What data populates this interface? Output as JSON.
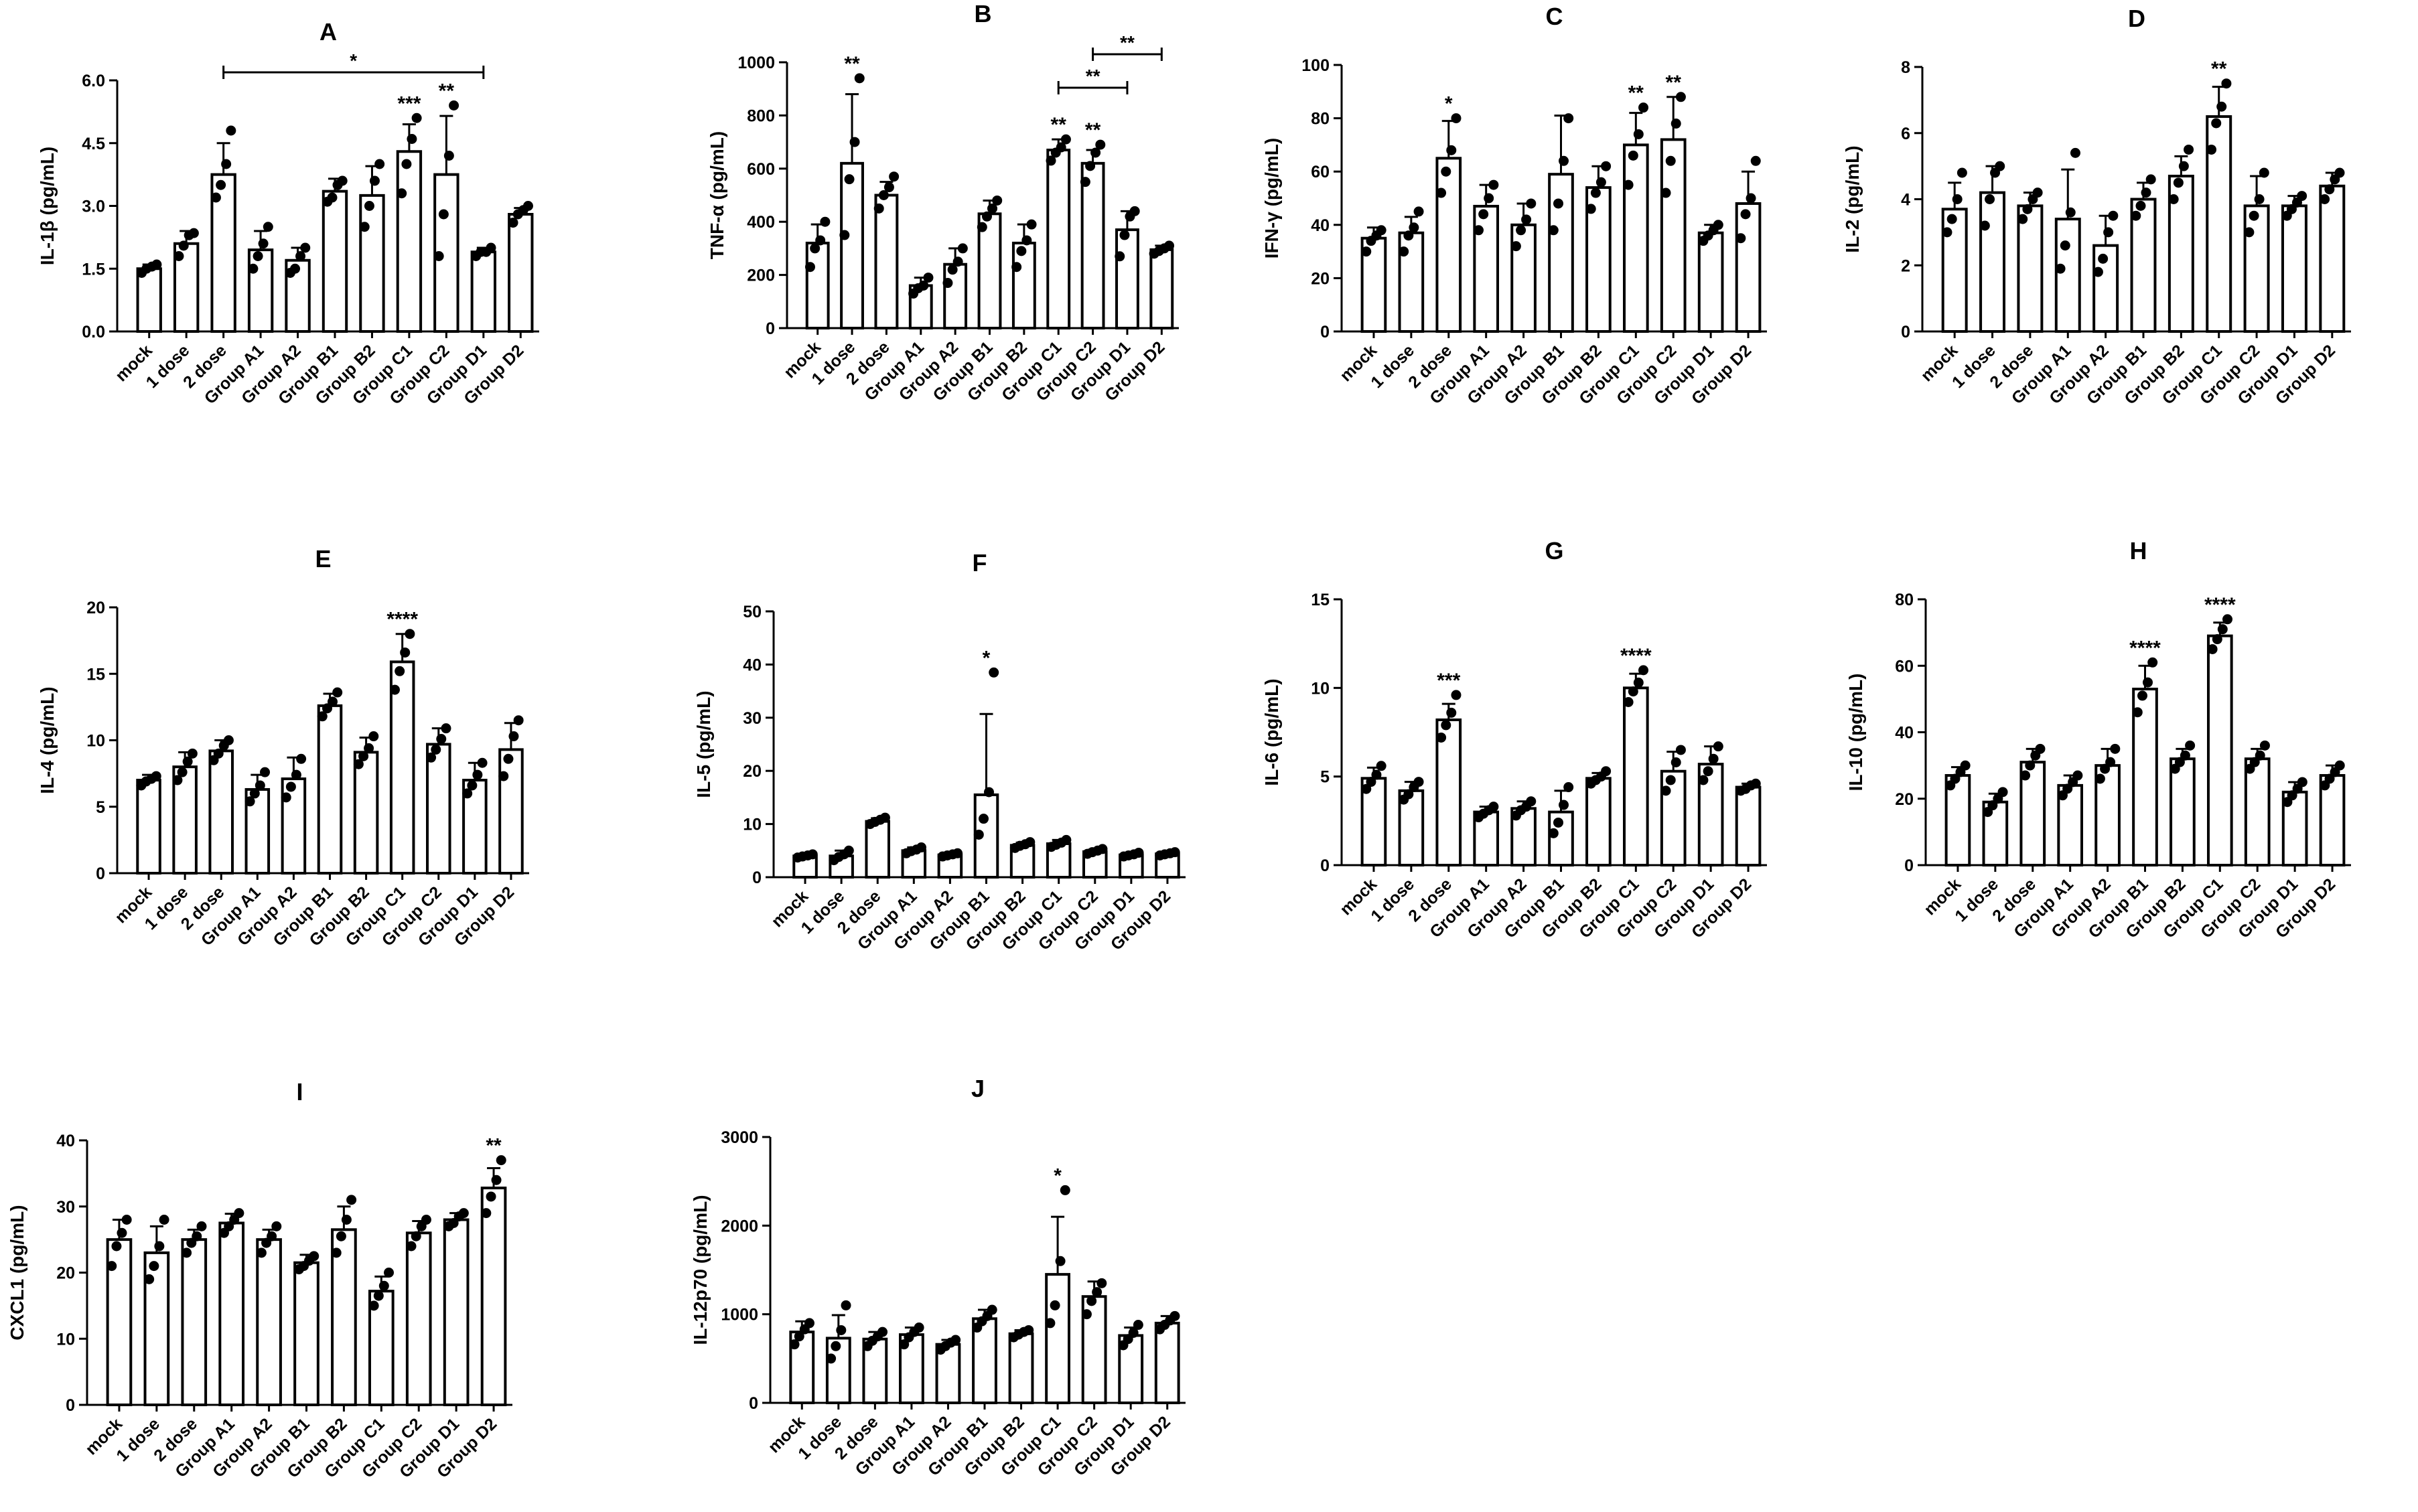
{
  "figure": {
    "categories": [
      "mock",
      "1 dose",
      "2 dose",
      "Group A1",
      "Group A2",
      "Group B1",
      "Group B2",
      "Group C1",
      "Group C2",
      "Group D1",
      "Group D2"
    ],
    "bar_fill": "#ffffff",
    "bar_stroke": "#000000",
    "point_color": "#000000"
  },
  "chart_data": [
    {
      "type": "bar",
      "letter": "A",
      "ylabel": "IL-1β (pg/mL)",
      "ylim": [
        0,
        6
      ],
      "ticks": [
        "0.0",
        "1.5",
        "3.0",
        "4.5",
        "6.0"
      ],
      "tick_values": [
        0,
        1.5,
        3,
        4.5,
        6
      ],
      "values": [
        1.5,
        2.1,
        3.75,
        1.95,
        1.7,
        3.35,
        3.25,
        4.3,
        3.75,
        1.9,
        2.8
      ],
      "errors": [
        0.1,
        0.3,
        0.75,
        0.45,
        0.3,
        0.3,
        0.7,
        0.65,
        1.4,
        0.1,
        0.15
      ],
      "points": [
        [
          1.4,
          1.5,
          1.55,
          1.6
        ],
        [
          1.8,
          2.05,
          2.3,
          2.35
        ],
        [
          3.2,
          3.5,
          4.0,
          4.8
        ],
        [
          1.5,
          1.8,
          2.1,
          2.5
        ],
        [
          1.4,
          1.5,
          1.8,
          2.0
        ],
        [
          3.1,
          3.2,
          3.5,
          3.6
        ],
        [
          2.5,
          3.0,
          3.6,
          4.0
        ],
        [
          3.3,
          4.0,
          4.6,
          5.1
        ],
        [
          1.8,
          2.8,
          4.2,
          5.4
        ],
        [
          1.8,
          1.9,
          1.9,
          2.0
        ],
        [
          2.6,
          2.8,
          2.9,
          3.0
        ]
      ],
      "sig": [
        "",
        "",
        "",
        "",
        "",
        "",
        "",
        "***",
        "**",
        "",
        ""
      ],
      "brackets": [
        {
          "from": 2,
          "to": 9,
          "label": "*"
        }
      ]
    },
    {
      "type": "bar",
      "letter": "B",
      "ylabel": "TNF-α (pg/mL)",
      "ylim": [
        0,
        1000
      ],
      "ticks": [
        "0",
        "200",
        "400",
        "600",
        "800",
        "1000"
      ],
      "tick_values": [
        0,
        200,
        400,
        600,
        800,
        1000
      ],
      "values": [
        320,
        620,
        500,
        160,
        240,
        430,
        320,
        670,
        620,
        370,
        295
      ],
      "errors": [
        70,
        260,
        50,
        30,
        60,
        50,
        70,
        40,
        50,
        70,
        15
      ],
      "points": [
        [
          230,
          300,
          330,
          400
        ],
        [
          350,
          560,
          700,
          940
        ],
        [
          450,
          500,
          530,
          570
        ],
        [
          130,
          150,
          160,
          190
        ],
        [
          170,
          220,
          250,
          300
        ],
        [
          380,
          420,
          450,
          480
        ],
        [
          230,
          290,
          330,
          390
        ],
        [
          630,
          660,
          680,
          710
        ],
        [
          550,
          610,
          660,
          690
        ],
        [
          270,
          350,
          420,
          440
        ],
        [
          280,
          290,
          300,
          310
        ]
      ],
      "sig": [
        "",
        "**",
        "",
        "",
        "",
        "",
        "",
        "**",
        "**",
        "",
        ""
      ],
      "brackets": [
        {
          "from": 8,
          "to": 10,
          "label": "**"
        },
        {
          "from": 7,
          "to": 9,
          "label": "**"
        }
      ]
    },
    {
      "type": "bar",
      "letter": "C",
      "ylabel": "IFN-γ (pg/mL)",
      "ylim": [
        0,
        100
      ],
      "ticks": [
        "0",
        "20",
        "40",
        "60",
        "80",
        "100"
      ],
      "tick_values": [
        0,
        20,
        40,
        60,
        80,
        100
      ],
      "values": [
        35,
        37,
        65,
        47,
        40,
        59,
        54,
        70,
        72,
        37,
        48
      ],
      "errors": [
        4,
        6,
        14,
        8,
        8,
        22,
        8,
        12,
        16,
        3,
        12
      ],
      "points": [
        [
          30,
          34,
          36,
          38
        ],
        [
          30,
          36,
          39,
          45
        ],
        [
          52,
          60,
          68,
          80
        ],
        [
          38,
          44,
          50,
          55
        ],
        [
          32,
          38,
          42,
          48
        ],
        [
          38,
          48,
          64,
          80
        ],
        [
          46,
          52,
          56,
          62
        ],
        [
          55,
          66,
          74,
          84
        ],
        [
          52,
          64,
          78,
          88
        ],
        [
          34,
          36,
          38,
          40
        ],
        [
          35,
          44,
          50,
          64
        ]
      ],
      "sig": [
        "",
        "",
        "*",
        "",
        "",
        "",
        "",
        "**",
        "**",
        "",
        ""
      ],
      "brackets": []
    },
    {
      "type": "bar",
      "letter": "D",
      "ylabel": "IL-2 (pg/mL)",
      "ylim": [
        0,
        8
      ],
      "ticks": [
        "0",
        "2",
        "4",
        "6",
        "8"
      ],
      "tick_values": [
        0,
        2,
        4,
        6,
        8
      ],
      "values": [
        3.7,
        4.2,
        3.8,
        3.4,
        2.6,
        4.0,
        4.7,
        6.5,
        3.8,
        3.8,
        4.4
      ],
      "errors": [
        0.8,
        0.8,
        0.4,
        1.5,
        0.9,
        0.5,
        0.6,
        0.9,
        0.9,
        0.3,
        0.4
      ],
      "points": [
        [
          3.0,
          3.4,
          4.0,
          4.8
        ],
        [
          3.2,
          4.0,
          4.8,
          5.0
        ],
        [
          3.4,
          3.7,
          4.0,
          4.2
        ],
        [
          1.9,
          2.6,
          3.6,
          5.4
        ],
        [
          1.8,
          2.2,
          3.0,
          3.5
        ],
        [
          3.5,
          3.8,
          4.2,
          4.6
        ],
        [
          4.0,
          4.5,
          5.0,
          5.5
        ],
        [
          5.5,
          6.3,
          6.8,
          7.5
        ],
        [
          3.0,
          3.5,
          4.0,
          4.8
        ],
        [
          3.5,
          3.7,
          3.9,
          4.1
        ],
        [
          4.0,
          4.3,
          4.6,
          4.8
        ]
      ],
      "sig": [
        "",
        "",
        "",
        "",
        "",
        "",
        "",
        "**",
        "",
        "",
        ""
      ],
      "brackets": []
    },
    {
      "type": "bar",
      "letter": "E",
      "ylabel": "IL-4 (pg/mL)",
      "ylim": [
        0,
        20
      ],
      "ticks": [
        "0",
        "5",
        "10",
        "15",
        "20"
      ],
      "tick_values": [
        0,
        5,
        10,
        15,
        20
      ],
      "values": [
        7,
        8,
        9.2,
        6.3,
        7.1,
        12.6,
        9.1,
        15.9,
        9.7,
        7,
        9.3
      ],
      "errors": [
        0.4,
        1.1,
        0.8,
        1.1,
        1.6,
        0.9,
        1.1,
        2.1,
        1.2,
        1.3,
        2.0
      ],
      "points": [
        [
          6.6,
          6.9,
          7.1,
          7.3
        ],
        [
          7.0,
          7.6,
          8.4,
          9.0
        ],
        [
          8.5,
          9.0,
          9.6,
          10.0
        ],
        [
          5.4,
          6.0,
          6.6,
          7.6
        ],
        [
          5.7,
          6.5,
          7.4,
          8.6
        ],
        [
          11.8,
          12.4,
          12.9,
          13.6
        ],
        [
          8.2,
          8.8,
          9.4,
          10.3
        ],
        [
          13.8,
          15.2,
          16.6,
          18.0
        ],
        [
          8.7,
          9.3,
          10.1,
          10.9
        ],
        [
          6.0,
          6.6,
          7.4,
          8.3
        ],
        [
          7.3,
          8.6,
          10.3,
          11.5
        ]
      ],
      "sig": [
        "",
        "",
        "",
        "",
        "",
        "",
        "",
        "****",
        "",
        "",
        ""
      ],
      "brackets": []
    },
    {
      "type": "bar",
      "letter": "F",
      "ylabel": "IL-5 (pg/mL)",
      "ylim": [
        0,
        50
      ],
      "ticks": [
        "0",
        "10",
        "20",
        "30",
        "40",
        "50"
      ],
      "tick_values": [
        0,
        10,
        20,
        30,
        40,
        50
      ],
      "values": [
        4,
        4,
        10.5,
        5,
        4.2,
        15.5,
        6,
        6.3,
        4.8,
        4.2,
        4.4
      ],
      "errors": [
        0.3,
        1.0,
        0.6,
        0.6,
        0.3,
        15.2,
        0.5,
        0.7,
        0.4,
        0.3,
        0.3
      ],
      "points": [
        [
          3.7,
          3.9,
          4.1,
          4.3
        ],
        [
          3.2,
          3.8,
          4.3,
          5.0
        ],
        [
          10.0,
          10.4,
          10.8,
          11.2
        ],
        [
          4.5,
          4.9,
          5.2,
          5.6
        ],
        [
          3.9,
          4.1,
          4.3,
          4.5
        ],
        [
          8.0,
          11.0,
          16.0,
          38.5
        ],
        [
          5.5,
          5.9,
          6.2,
          6.6
        ],
        [
          5.7,
          6.1,
          6.5,
          7.0
        ],
        [
          4.4,
          4.7,
          5.0,
          5.3
        ],
        [
          3.9,
          4.1,
          4.3,
          4.6
        ],
        [
          4.1,
          4.3,
          4.5,
          4.7
        ]
      ],
      "sig": [
        "",
        "",
        "",
        "",
        "",
        "*",
        "",
        "",
        "",
        "",
        ""
      ],
      "brackets": []
    },
    {
      "type": "bar",
      "letter": "G",
      "ylabel": "IL-6 (pg/mL)",
      "ylim": [
        0,
        15
      ],
      "ticks": [
        "0",
        "5",
        "10",
        "15"
      ],
      "tick_values": [
        0,
        5,
        10,
        15
      ],
      "values": [
        4.9,
        4.2,
        8.2,
        3.0,
        3.2,
        3.0,
        4.9,
        10.0,
        5.3,
        5.7,
        4.4
      ],
      "errors": [
        0.6,
        0.5,
        0.9,
        0.3,
        0.4,
        1.2,
        0.3,
        0.8,
        1.1,
        1.0,
        0.2
      ],
      "points": [
        [
          4.3,
          4.7,
          5.1,
          5.6
        ],
        [
          3.7,
          4.0,
          4.4,
          4.7
        ],
        [
          7.2,
          7.9,
          8.6,
          9.6
        ],
        [
          2.7,
          2.9,
          3.1,
          3.3
        ],
        [
          2.8,
          3.1,
          3.3,
          3.6
        ],
        [
          1.8,
          2.4,
          3.4,
          4.4
        ],
        [
          4.6,
          4.8,
          5.0,
          5.3
        ],
        [
          9.2,
          9.8,
          10.3,
          11.0
        ],
        [
          4.2,
          4.8,
          5.8,
          6.5
        ],
        [
          4.8,
          5.3,
          6.0,
          6.7
        ],
        [
          4.2,
          4.3,
          4.5,
          4.6
        ]
      ],
      "sig": [
        "",
        "",
        "***",
        "",
        "",
        "",
        "",
        "****",
        "",
        "",
        ""
      ],
      "brackets": []
    },
    {
      "type": "bar",
      "letter": "H",
      "ylabel": "IL-10 (pg/mL)",
      "ylim": [
        0,
        80
      ],
      "ticks": [
        "0",
        "20",
        "40",
        "60",
        "80"
      ],
      "tick_values": [
        0,
        20,
        40,
        60,
        80
      ],
      "values": [
        27,
        19,
        31,
        24,
        30,
        53,
        32,
        69,
        32,
        22,
        27
      ],
      "errors": [
        2.5,
        2.5,
        4,
        3,
        5,
        7,
        3,
        4,
        3,
        3,
        3
      ],
      "points": [
        [
          24,
          26,
          28,
          30
        ],
        [
          16,
          18,
          20,
          22
        ],
        [
          27,
          30,
          33,
          35
        ],
        [
          21,
          23,
          25,
          27
        ],
        [
          26,
          29,
          31,
          35
        ],
        [
          46,
          51,
          55,
          61
        ],
        [
          29,
          31,
          33,
          36
        ],
        [
          65,
          68,
          71,
          74
        ],
        [
          29,
          31,
          33,
          36
        ],
        [
          19,
          21,
          23,
          25
        ],
        [
          24,
          26,
          28,
          30
        ]
      ],
      "sig": [
        "",
        "",
        "",
        "",
        "",
        "****",
        "",
        "****",
        "",
        "",
        ""
      ],
      "brackets": []
    },
    {
      "type": "bar",
      "letter": "I",
      "ylabel": "CXCL1 (pg/mL)",
      "ylim": [
        0,
        40
      ],
      "ticks": [
        "0",
        "10",
        "20",
        "30",
        "40"
      ],
      "tick_values": [
        0,
        10,
        20,
        30,
        40
      ],
      "values": [
        25,
        23,
        25,
        27.5,
        25,
        21.5,
        26.5,
        17.2,
        26,
        28,
        32.8
      ],
      "errors": [
        3,
        4,
        1.5,
        1.4,
        1.5,
        1.2,
        3.5,
        2.2,
        1.8,
        1.0,
        3.0
      ],
      "points": [
        [
          21,
          24,
          26,
          28
        ],
        [
          19,
          21,
          24,
          28
        ],
        [
          23,
          24.5,
          25.5,
          27
        ],
        [
          26,
          27,
          28,
          29
        ],
        [
          23,
          24.5,
          25.5,
          27
        ],
        [
          20.5,
          21,
          21.8,
          22.5
        ],
        [
          23,
          25.5,
          28,
          31
        ],
        [
          15,
          16.5,
          18,
          20
        ],
        [
          24,
          25.5,
          27,
          28
        ],
        [
          27,
          27.5,
          28.5,
          29
        ],
        [
          29,
          31.5,
          34,
          37
        ]
      ],
      "sig": [
        "",
        "",
        "",
        "",
        "",
        "",
        "",
        "",
        "",
        "",
        "**"
      ],
      "brackets": []
    },
    {
      "type": "bar",
      "letter": "J",
      "ylabel": "IL-12p70 (pg/mL)",
      "ylim": [
        0,
        3000
      ],
      "ticks": [
        "0",
        "1000",
        "2000",
        "3000"
      ],
      "tick_values": [
        0,
        1000,
        2000,
        3000
      ],
      "values": [
        800,
        730,
        720,
        770,
        660,
        950,
        780,
        1450,
        1200,
        760,
        900
      ],
      "errors": [
        120,
        260,
        80,
        80,
        50,
        100,
        40,
        650,
        170,
        90,
        80
      ],
      "points": [
        [
          660,
          750,
          830,
          900
        ],
        [
          500,
          640,
          820,
          1100
        ],
        [
          640,
          700,
          750,
          800
        ],
        [
          660,
          740,
          800,
          850
        ],
        [
          600,
          640,
          680,
          710
        ],
        [
          850,
          920,
          980,
          1050
        ],
        [
          740,
          770,
          800,
          820
        ],
        [
          900,
          1100,
          1600,
          2400
        ],
        [
          1000,
          1150,
          1250,
          1350
        ],
        [
          650,
          720,
          790,
          880
        ],
        [
          830,
          880,
          930,
          980
        ]
      ],
      "sig": [
        "",
        "",
        "",
        "",
        "",
        "",
        "",
        "*",
        "",
        "",
        ""
      ],
      "brackets": []
    }
  ]
}
